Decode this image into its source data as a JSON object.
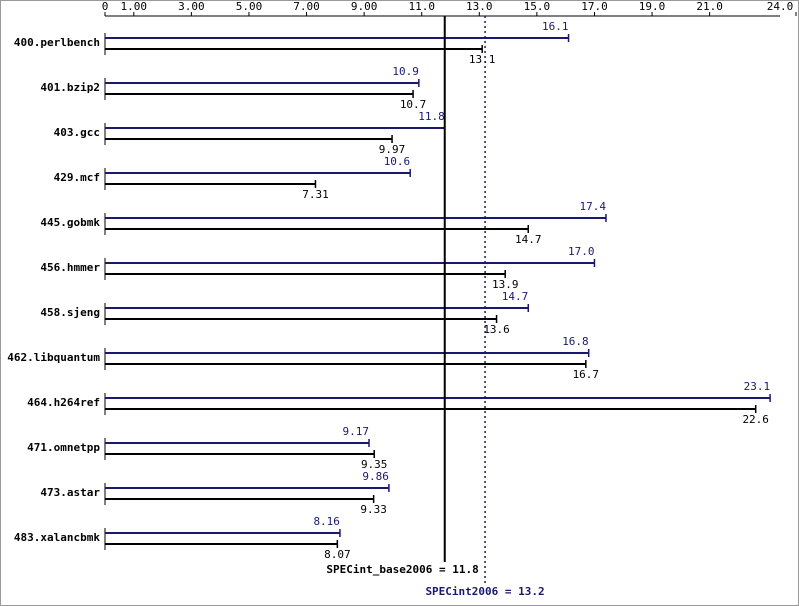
{
  "chart_data": {
    "type": "bar",
    "categories": [
      "400.perlbench",
      "401.bzip2",
      "403.gcc",
      "429.mcf",
      "445.gobmk",
      "456.hmmer",
      "458.sjeng",
      "462.libquantum",
      "464.h264ref",
      "471.omnetpp",
      "473.astar",
      "483.xalancbmk"
    ],
    "series": [
      {
        "color": "#191970",
        "values": [
          16.1,
          10.9,
          11.8,
          10.6,
          17.4,
          17.0,
          14.7,
          16.8,
          23.1,
          9.17,
          9.86,
          8.16
        ],
        "value_labels": [
          "16.1",
          "10.9",
          "11.8",
          "10.6",
          "17.4",
          "17.0",
          "14.7",
          "16.8",
          "23.1",
          "9.17",
          "9.86",
          "8.16"
        ]
      },
      {
        "color": "#000000",
        "values": [
          13.1,
          10.7,
          9.97,
          7.31,
          14.7,
          13.9,
          13.6,
          16.7,
          22.6,
          9.35,
          9.33,
          8.07
        ],
        "value_labels": [
          "13.1",
          "10.7",
          "9.97",
          "7.31",
          "14.7",
          "13.9",
          "13.6",
          "16.7",
          "22.6",
          "9.35",
          "9.33",
          "8.07"
        ]
      }
    ],
    "xlim": [
      0,
      24
    ],
    "xticks": [
      0,
      {
        "value": 1,
        "label": "1.00"
      },
      {
        "value": 3,
        "label": "3.00"
      },
      {
        "value": 5,
        "label": "5.00"
      },
      {
        "value": 7,
        "label": "7.00"
      },
      {
        "value": 9,
        "label": "9.00"
      },
      {
        "value": 11,
        "label": "11.0"
      },
      {
        "value": 13,
        "label": "13.0"
      },
      {
        "value": 15,
        "label": "15.0"
      },
      {
        "value": 17,
        "label": "17.0"
      },
      {
        "value": 19,
        "label": "19.0"
      },
      {
        "value": 21,
        "label": "21.0"
      },
      {
        "value": 24,
        "label": "24.0"
      }
    ],
    "reference_lines": [
      {
        "value": 11.8,
        "label": "SPECint_base2006 = 11.8",
        "color": "#000000",
        "style": "solid"
      },
      {
        "value": 13.2,
        "label": "SPECint2006 = 13.2",
        "color": "#191970",
        "style": "dotted"
      }
    ]
  }
}
